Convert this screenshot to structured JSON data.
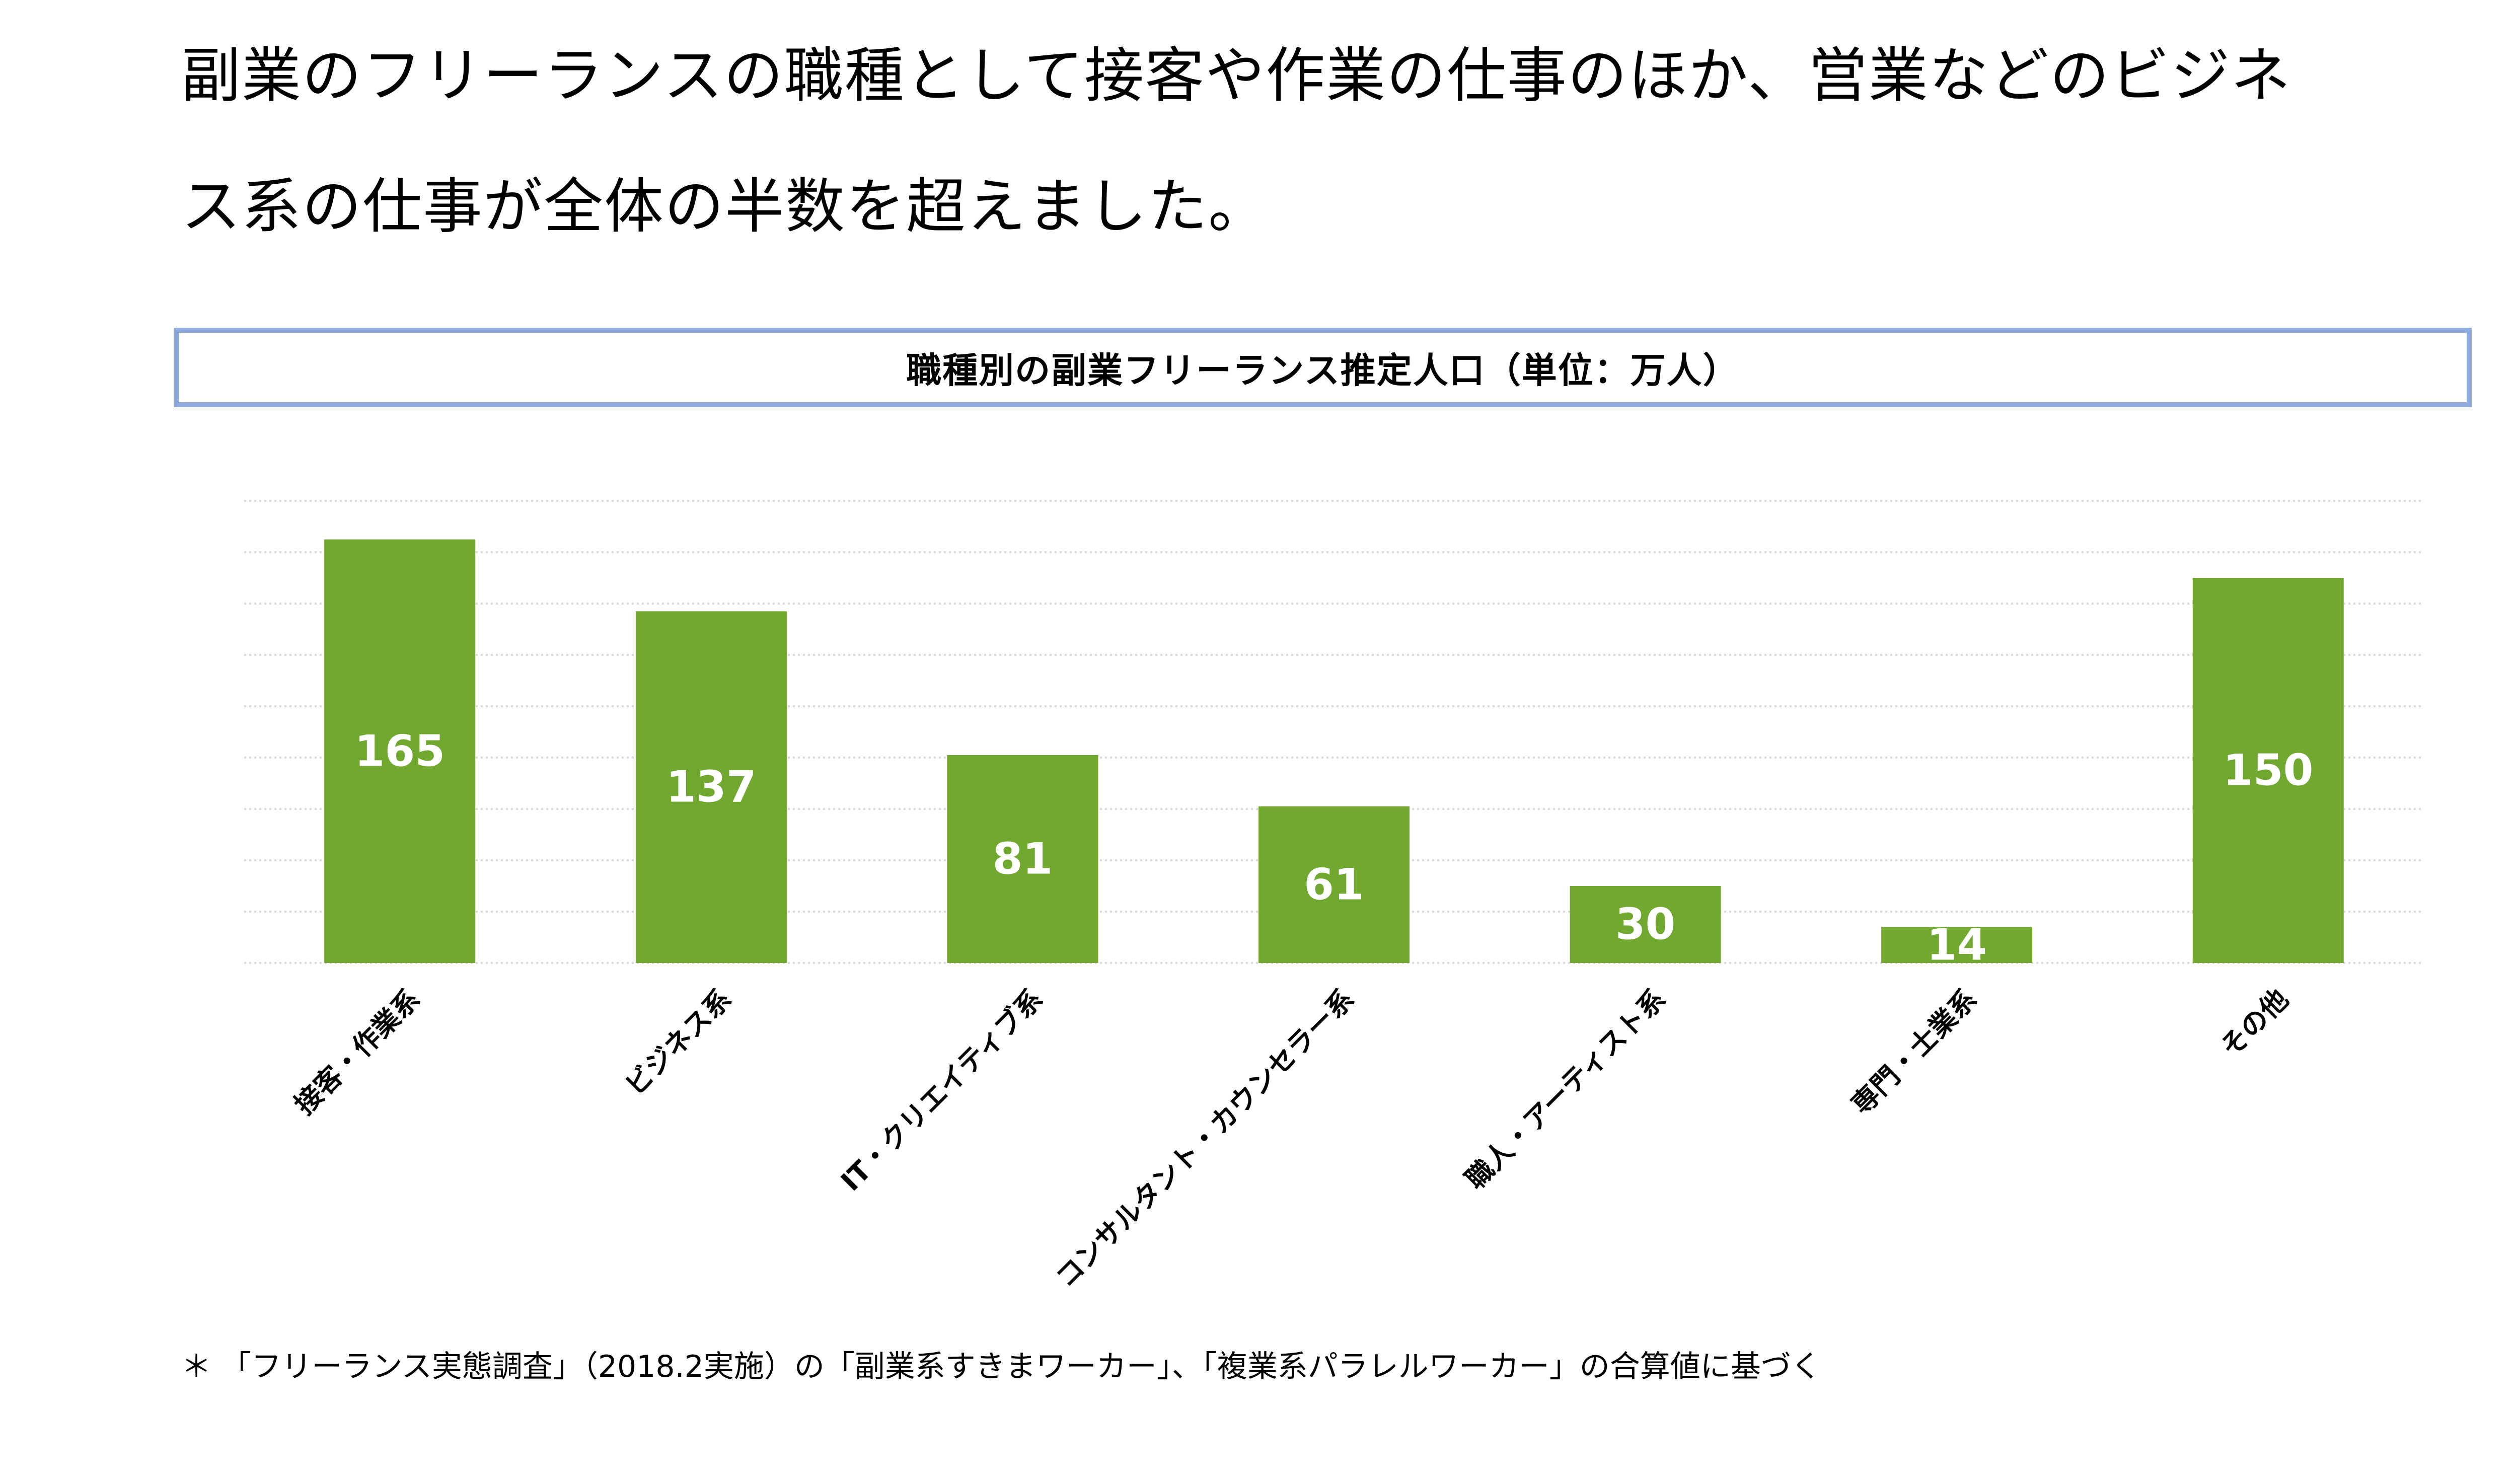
{
  "headline": {
    "line1": "副業のフリーランスの職種として接客や作業の仕事のほか、営業などのビジネ",
    "line2": "ス系の仕事が全体の半数を超えました。"
  },
  "chart_data": {
    "type": "bar",
    "title": "職種別の副業フリーランス推定人口（単位：万人）",
    "categories": [
      "接客・作業系",
      "ビジネス系",
      "IT・クリエイティブ系",
      "コンサルタント・カウンセラー系",
      "職人・アーティスト系",
      "専門・士業系",
      "その他"
    ],
    "values": [
      165,
      137,
      81,
      61,
      30,
      14,
      150
    ],
    "ylim": [
      0,
      180
    ],
    "grid": true,
    "legend": "none",
    "bar_color": "#70a830",
    "label_color": "#ffffff"
  },
  "footnote": "＊ 「フリーランス実態調査」（2018.2実施）の「副業系すきまワーカー」、「複業系パラレルワーカー」の合算値に基づく",
  "colors": {
    "title_border": "#8ea9db",
    "grid": "#d9d9d9"
  }
}
